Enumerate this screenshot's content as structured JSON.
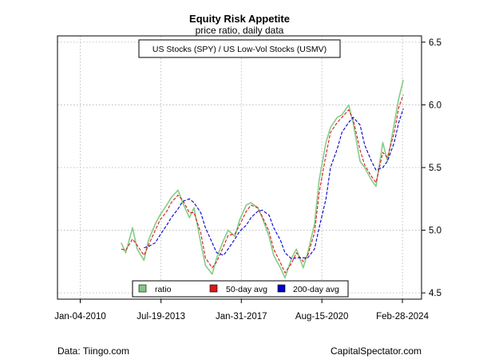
{
  "chart_data": {
    "type": "line",
    "title": "Equity Risk Appetite",
    "subtitle": "price ratio, daily data",
    "annotation": "US Stocks (SPY) / US Low-Vol Stocks (USMV)",
    "x_ticks": [
      "Jan-04-2010",
      "Jul-19-2013",
      "Jan-31-2017",
      "Aug-15-2020",
      "Feb-28-2024"
    ],
    "y_ticks": [
      "4.5",
      "5.0",
      "5.5",
      "6.0",
      "6.5"
    ],
    "ylim": [
      4.45,
      6.55
    ],
    "xlim": [
      2009.0,
      2025.0
    ],
    "y_axis_side": "right",
    "grid": true,
    "legend_position": "bottom-center",
    "x": [
      2011.8,
      2012.0,
      2012.3,
      2012.5,
      2012.8,
      2013.0,
      2013.3,
      2013.5,
      2013.8,
      2014.0,
      2014.3,
      2014.5,
      2014.8,
      2015.0,
      2015.3,
      2015.5,
      2015.8,
      2016.0,
      2016.3,
      2016.5,
      2016.8,
      2017.0,
      2017.3,
      2017.5,
      2017.8,
      2018.0,
      2018.3,
      2018.5,
      2018.8,
      2019.0,
      2019.3,
      2019.5,
      2019.8,
      2020.0,
      2020.3,
      2020.5,
      2020.8,
      2021.0,
      2021.3,
      2021.5,
      2021.8,
      2022.0,
      2022.3,
      2022.5,
      2022.8,
      2023.0,
      2023.3,
      2023.5,
      2023.8,
      2024.0,
      2024.2
    ],
    "series": [
      {
        "name": "ratio",
        "color": "#7fc97f",
        "values": [
          4.9,
          4.82,
          5.02,
          4.85,
          4.76,
          4.92,
          5.05,
          5.12,
          5.2,
          5.26,
          5.32,
          5.22,
          5.1,
          5.18,
          4.9,
          4.72,
          4.65,
          4.78,
          4.92,
          5.0,
          4.95,
          5.08,
          5.2,
          5.22,
          5.18,
          5.1,
          4.95,
          4.8,
          4.7,
          4.62,
          4.78,
          4.85,
          4.7,
          4.82,
          5.05,
          5.4,
          5.7,
          5.82,
          5.9,
          5.92,
          6.0,
          5.85,
          5.55,
          5.5,
          5.4,
          5.35,
          5.7,
          5.55,
          5.85,
          6.05,
          6.2
        ]
      },
      {
        "name": "50-day avg",
        "color": "#d7191c",
        "values": [
          4.85,
          4.84,
          4.93,
          4.88,
          4.8,
          4.88,
          5.0,
          5.08,
          5.15,
          5.22,
          5.28,
          5.24,
          5.14,
          5.14,
          4.98,
          4.78,
          4.7,
          4.75,
          4.87,
          4.96,
          4.97,
          5.04,
          5.15,
          5.2,
          5.18,
          5.11,
          4.99,
          4.85,
          4.74,
          4.66,
          4.74,
          4.82,
          4.75,
          4.8,
          4.98,
          5.3,
          5.6,
          5.78,
          5.86,
          5.9,
          5.96,
          5.88,
          5.64,
          5.52,
          5.43,
          5.38,
          5.62,
          5.58,
          5.78,
          5.98,
          6.08
        ]
      },
      {
        "name": "200-day avg",
        "color": "#0000cc",
        "values": [
          null,
          null,
          null,
          null,
          4.86,
          4.87,
          4.9,
          4.96,
          5.04,
          5.1,
          5.17,
          5.23,
          5.25,
          5.22,
          5.14,
          5.02,
          4.9,
          4.82,
          4.8,
          4.85,
          4.93,
          4.99,
          5.04,
          5.1,
          5.15,
          5.16,
          5.12,
          5.02,
          4.92,
          4.82,
          4.77,
          4.78,
          4.78,
          4.78,
          4.85,
          5.02,
          5.25,
          5.5,
          5.65,
          5.78,
          5.86,
          5.9,
          5.84,
          5.68,
          5.55,
          5.48,
          5.5,
          5.55,
          5.7,
          5.86,
          5.97
        ]
      }
    ]
  },
  "footer": {
    "left": "Data: Tiingo.com",
    "right": "CapitalSpectator.com"
  }
}
